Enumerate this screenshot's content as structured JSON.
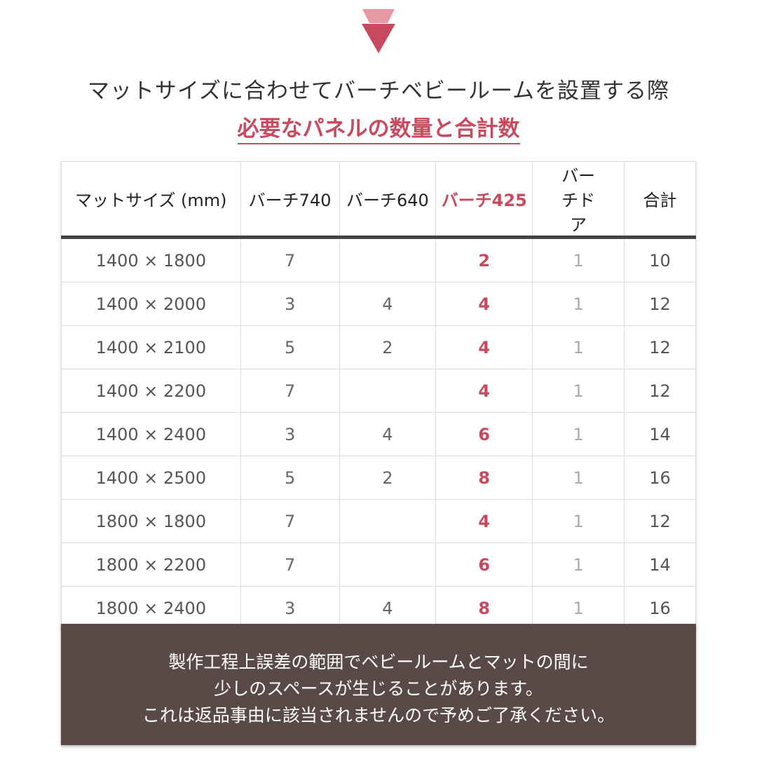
{
  "colors": {
    "accent": "#c84a5e",
    "accent_light": "#e79aa6",
    "footer_bg": "#5a4a47"
  },
  "arrow_icon": "double-down-triangle",
  "title_line1": "マットサイズに合わせてバーチベビールームを設置する際",
  "title_line2": "必要なパネルの数量と合計数",
  "table": {
    "headers": [
      "マットサイズ (mm)",
      "バーチ740",
      "バーチ640",
      "バーチ425",
      "バーチドア",
      "合計"
    ],
    "rows": [
      [
        "1400 × 1800",
        "7",
        "",
        "2",
        "1",
        "10"
      ],
      [
        "1400 × 2000",
        "3",
        "4",
        "4",
        "1",
        "12"
      ],
      [
        "1400 × 2100",
        "5",
        "2",
        "4",
        "1",
        "12"
      ],
      [
        "1400 × 2200",
        "7",
        "",
        "4",
        "1",
        "12"
      ],
      [
        "1400 × 2400",
        "3",
        "4",
        "6",
        "1",
        "14"
      ],
      [
        "1400 × 2500",
        "5",
        "2",
        "8",
        "1",
        "16"
      ],
      [
        "1800 × 1800",
        "7",
        "",
        "4",
        "1",
        "12"
      ],
      [
        "1800 × 2200",
        "7",
        "",
        "6",
        "1",
        "14"
      ],
      [
        "1800 × 2400",
        "3",
        "4",
        "8",
        "1",
        "16"
      ]
    ]
  },
  "footer": [
    "製作工程上誤差の範囲でベビールームとマットの間に",
    "少しのスペースが生じることがあります。",
    "これは返品事由に該当されませんので予めご了承ください。"
  ]
}
